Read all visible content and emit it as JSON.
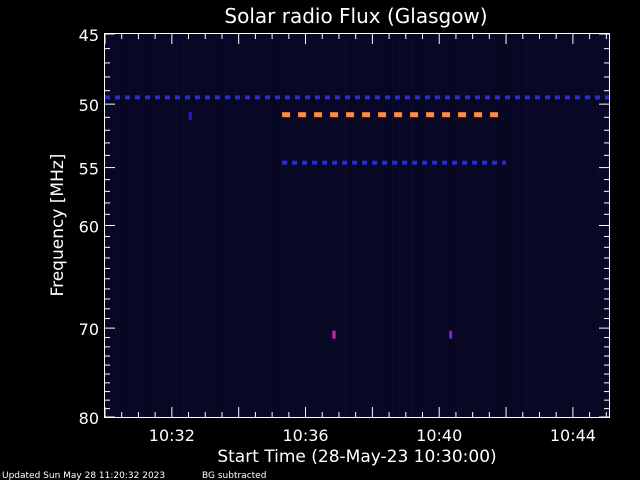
{
  "chart_data": {
    "type": "heatmap",
    "title": "Solar radio Flux (Glasgow)",
    "xlabel": "Start Time (28-May-23 10:30:00)",
    "ylabel": "Frequency [MHz]",
    "x_start": "10:30:00",
    "x_end": "10:45:05",
    "xlim_minutes": [
      0,
      15.08
    ],
    "ylim": [
      45,
      80
    ],
    "y_scale": "log",
    "y_reversed": true,
    "x_ticks": [
      "10:32",
      "10:36",
      "10:40",
      "10:44"
    ],
    "x_tick_minutes": [
      2,
      6,
      10,
      14
    ],
    "y_ticks": [
      45,
      50,
      55,
      60,
      70,
      80
    ],
    "background_color": "#070722",
    "features": [
      {
        "label": "narrowband emission",
        "freq_mhz": 49.5,
        "t_start_min": 0.0,
        "t_end_min": 15.08,
        "color": "#2a2ad8",
        "dash": true
      },
      {
        "label": "narrowband emission",
        "freq_mhz": 50.8,
        "t_start_min": 5.3,
        "t_end_min": 12.0,
        "color": "#ff8c3c",
        "dash": true
      },
      {
        "label": "narrowband emission",
        "freq_mhz": 54.6,
        "t_start_min": 5.3,
        "t_end_min": 12.0,
        "color": "#2a2ad8",
        "dash": true
      },
      {
        "label": "point emission",
        "freq_mhz": 70.7,
        "t_start_min": 6.8,
        "t_end_min": 6.9,
        "color": "#cc22aa",
        "dash": false
      },
      {
        "label": "point emission",
        "freq_mhz": 70.7,
        "t_start_min": 10.3,
        "t_end_min": 10.35,
        "color": "#7722cc",
        "dash": false
      },
      {
        "label": "point emission",
        "freq_mhz": 50.9,
        "t_start_min": 2.5,
        "t_end_min": 2.6,
        "color": "#1d1dc0",
        "dash": false
      }
    ]
  },
  "footer": {
    "updated": "Updated Sun May 28 11:20:32 2023",
    "bg_note": "BG subtracted"
  }
}
